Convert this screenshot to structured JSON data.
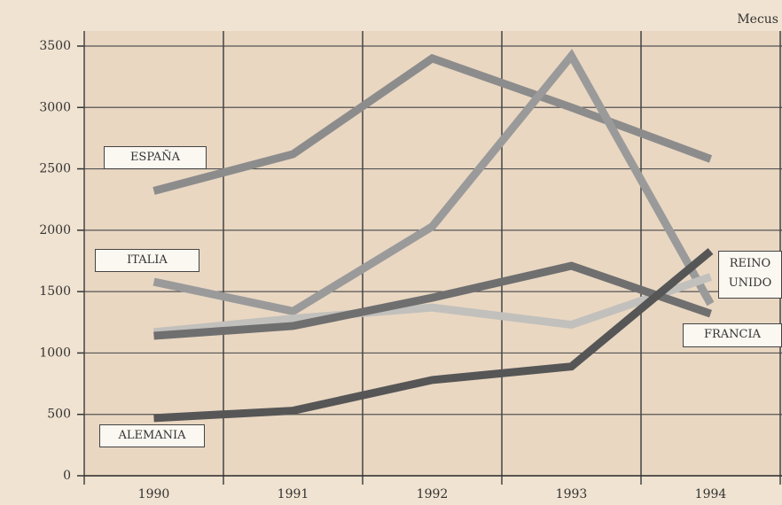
{
  "chart_data": {
    "type": "line",
    "unit": "Mecus",
    "categories": [
      "1990",
      "1991",
      "1992",
      "1993",
      "1994"
    ],
    "series": [
      {
        "name": "ESPAÑA",
        "color": "#8c8c8c",
        "values": [
          2320,
          2620,
          3400,
          3000,
          2580
        ]
      },
      {
        "name": "ITALIA",
        "color": "#9a9a9a",
        "values": [
          1580,
          1340,
          2030,
          3420,
          1400
        ]
      },
      {
        "name": "REINO UNIDO",
        "color": "#c2c0bc",
        "values": [
          1170,
          1280,
          1370,
          1230,
          1620
        ]
      },
      {
        "name": "FRANCIA",
        "color": "#6f6f6f",
        "values": [
          1140,
          1220,
          1450,
          1710,
          1320
        ]
      },
      {
        "name": "ALEMANIA",
        "color": "#565656",
        "values": [
          470,
          530,
          780,
          890,
          1830
        ]
      }
    ],
    "ylim": [
      0,
      3500
    ],
    "yticks": [
      0,
      500,
      1000,
      1500,
      2000,
      2500,
      3000,
      3500
    ],
    "grid": true
  }
}
